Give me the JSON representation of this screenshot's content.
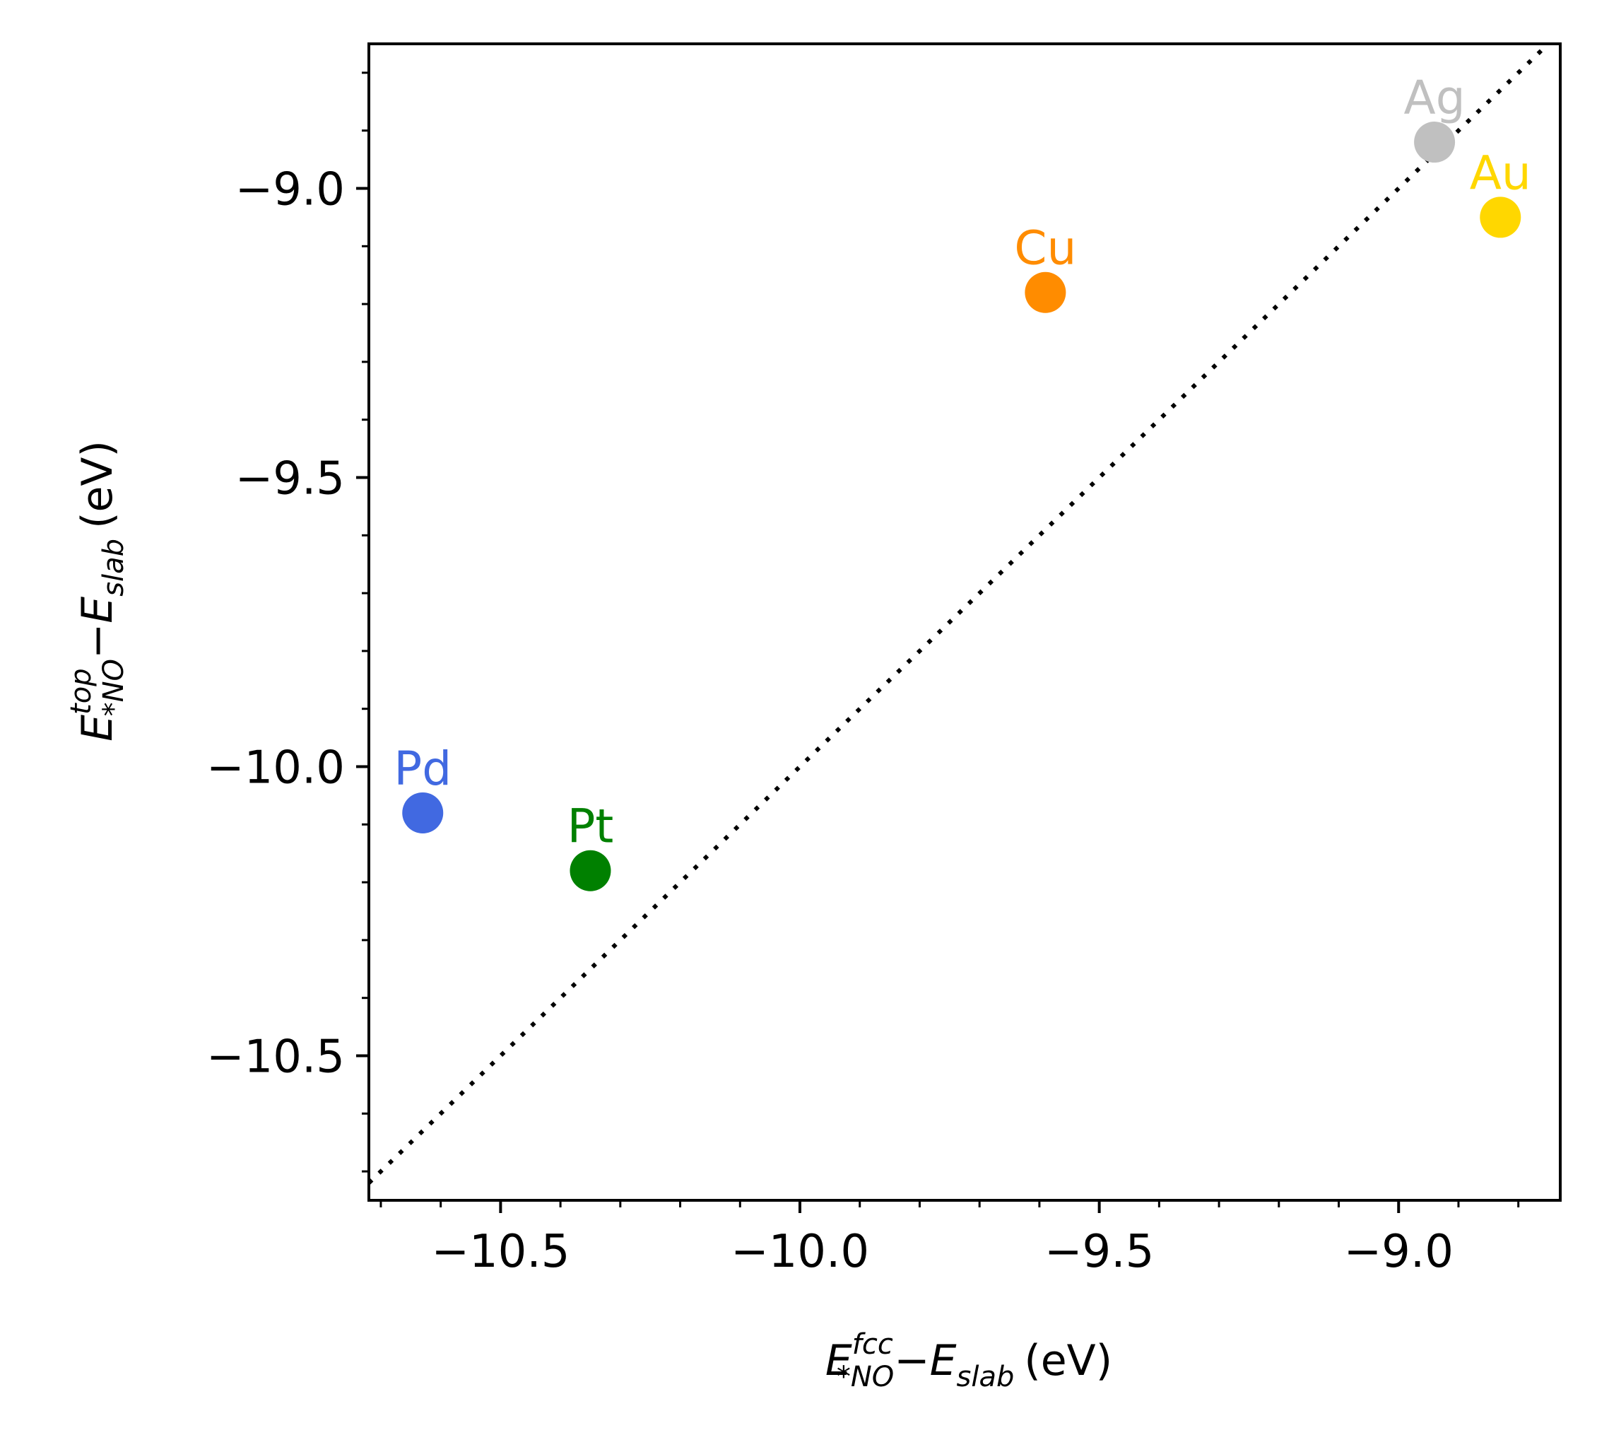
{
  "chart_data": {
    "type": "scatter",
    "title": "",
    "xlabel": {
      "E": "E",
      "sup": "fcc",
      "sub": "*NO",
      "minus": "−",
      "E2": "E",
      "sub2": "slab",
      "unit": "(eV)"
    },
    "ylabel": {
      "E": "E",
      "sup": "top",
      "sub": "*NO",
      "minus": "−",
      "E2": "E",
      "sub2": "slab",
      "unit": "(eV)"
    },
    "xlim": [
      -10.72,
      -8.73
    ],
    "ylim": [
      -10.75,
      -8.75
    ],
    "xticks": [
      -10.5,
      -10.0,
      -9.5,
      -9.0
    ],
    "yticks": [
      -9.0,
      -9.5,
      -10.0,
      -10.5
    ],
    "xtick_labels": [
      "−10.5",
      "−10.0",
      "−9.5",
      "−9.0"
    ],
    "ytick_labels": [
      "−9.0",
      "−9.5",
      "−10.0",
      "−10.5"
    ],
    "minor_tick_step": 0.1,
    "grid": false,
    "reference_line": {
      "style": "dotted",
      "color": "#000000",
      "description": "y = x"
    },
    "points": [
      {
        "label": "Pd",
        "x": -10.63,
        "y": -10.08,
        "color": "#4169e1"
      },
      {
        "label": "Pt",
        "x": -10.35,
        "y": -10.18,
        "color": "#008000"
      },
      {
        "label": "Cu",
        "x": -9.59,
        "y": -9.18,
        "color": "#ff8c00"
      },
      {
        "label": "Ag",
        "x": -8.94,
        "y": -8.92,
        "color": "#c0c0c0"
      },
      {
        "label": "Au",
        "x": -8.83,
        "y": -9.05,
        "color": "#ffd700"
      }
    ]
  }
}
